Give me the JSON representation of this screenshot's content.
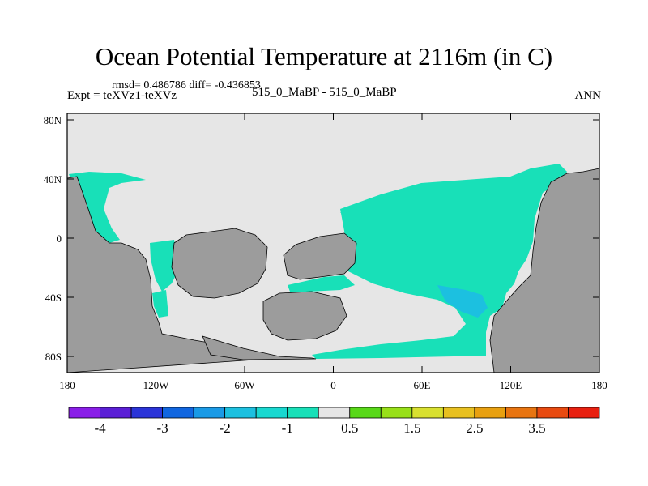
{
  "title": "Ocean Potential Temperature at 2116m (in C)",
  "stats": "rmsd= 0.486786 diff= -0.436853",
  "expt_label": "Expt = teXVz1-teXVz",
  "center_label": "515_0_MaBP - 515_0_MaBP",
  "season": "ANN",
  "lat_labels": [
    "80N",
    "40N",
    "0",
    "40S",
    "80S"
  ],
  "lon_labels": [
    "180",
    "120W",
    "60W",
    "0",
    "60E",
    "120E",
    "180"
  ],
  "colorbar": {
    "colors": [
      "#8a1ee8",
      "#5b1fd6",
      "#2b34d8",
      "#1166e0",
      "#1a9ae6",
      "#1cc0e0",
      "#18d8d0",
      "#18e0b8",
      "#e6e6e6",
      "#58d818",
      "#98e018",
      "#d8e030",
      "#e8c020",
      "#e8a010",
      "#e87410",
      "#e84a10",
      "#e82010"
    ],
    "labels": [
      "-4",
      "-3",
      "-2",
      "-1",
      "0.5",
      "1.5",
      "2.5",
      "3.5"
    ]
  },
  "map_colors": {
    "land": "#9c9c9c",
    "ocean_neutral": "#e6e6e6",
    "anomaly_cool": "#18e0b8",
    "anomaly_cooler": "#1cc0e0",
    "coastline": "#000000"
  }
}
